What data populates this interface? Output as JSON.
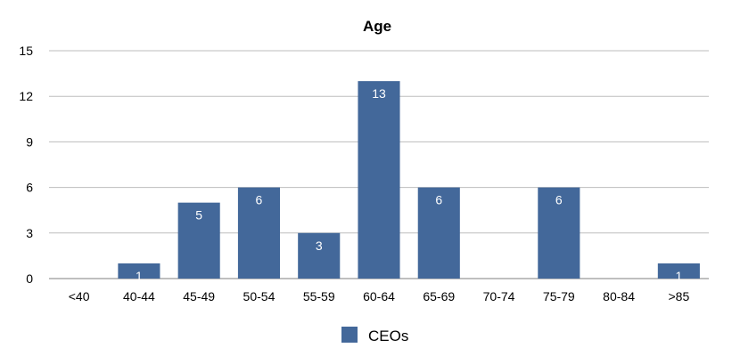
{
  "chart_data": {
    "type": "bar",
    "title": "Age",
    "xlabel": "",
    "ylabel": "",
    "categories": [
      "<40",
      "40-44",
      "45-49",
      "50-54",
      "55-59",
      "60-64",
      "65-69",
      "70-74",
      "75-79",
      "80-84",
      ">85"
    ],
    "series": [
      {
        "name": "CEOs",
        "values": [
          0,
          1,
          5,
          6,
          3,
          13,
          6,
          0,
          6,
          0,
          1
        ],
        "color": "#43689a"
      }
    ],
    "ylim": [
      0,
      15
    ],
    "yticks": [
      0,
      3,
      6,
      9,
      12,
      15
    ],
    "grid": true,
    "legend": "bottom"
  }
}
